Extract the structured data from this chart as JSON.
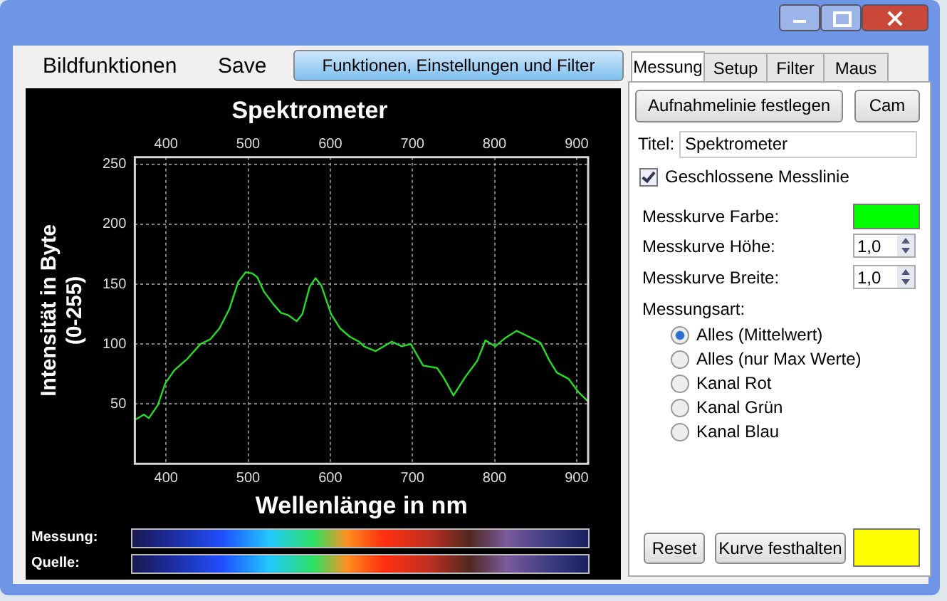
{
  "chart_data": {
    "type": "line",
    "title": "Spektrometer",
    "xlabel": "Wellenlänge in nm",
    "ylabel": "Intensität in Byte\n(0-255)",
    "xlim": [
      362,
      914
    ],
    "xticks": [
      400,
      500,
      600,
      700,
      800,
      900
    ],
    "x2lim": [
      362,
      914
    ],
    "x2ticks": [
      400,
      500,
      600,
      700,
      800,
      900
    ],
    "ylim": [
      0,
      256
    ],
    "yticks": [
      50,
      100,
      150,
      200,
      250
    ],
    "grid": true,
    "legend": false,
    "marker": "none",
    "line_style": "solid",
    "series": [
      {
        "color": "#22dd22",
        "x": [
          363,
          373,
          379,
          390,
          399,
          410,
          425,
          442,
          454,
          465,
          477,
          488,
          497,
          505,
          511,
          519,
          531,
          540,
          549,
          559,
          566,
          575,
          582,
          589,
          601,
          612,
          624,
          635,
          641,
          655,
          675,
          687,
          698,
          713,
          730,
          738,
          750,
          764,
          779,
          789,
          801,
          813,
          827,
          842,
          856,
          867,
          876,
          890,
          902,
          914
        ],
        "values": [
          37,
          41,
          38,
          49,
          67,
          78,
          87,
          100,
          104,
          113,
          129,
          152,
          160,
          159,
          156,
          144,
          133,
          126,
          124,
          119,
          125,
          148,
          155,
          149,
          125,
          113,
          106,
          102,
          98,
          94,
          102,
          98,
          100,
          82,
          80,
          72,
          57,
          72,
          86,
          103,
          98,
          105,
          111,
          106,
          101,
          86,
          76,
          71,
          60,
          52
        ]
      }
    ],
    "annotations": [
      "Bildfunktionen",
      "Save",
      "Funktionen, Einstellungen und Filter",
      "Messung",
      "Setup",
      "Filter",
      "Maus",
      "Aufnahmelinie festlegen",
      "Cam",
      "Titel:",
      "Spektrometer",
      "Geschlossene Messlinie",
      "Messkurve Farbe:",
      "Messkurve Höhe:",
      "1,0",
      "Messkurve Breite:",
      "1,0",
      "Messungsart:",
      "Alles (Mittelwert)",
      "Alles (nur Max Werte)",
      "Kanal Rot",
      "Kanal Grün",
      "Kanal Blau",
      "Reset",
      "Kurve festhalten",
      "Messung:",
      "Quelle:"
    ]
  }
}
